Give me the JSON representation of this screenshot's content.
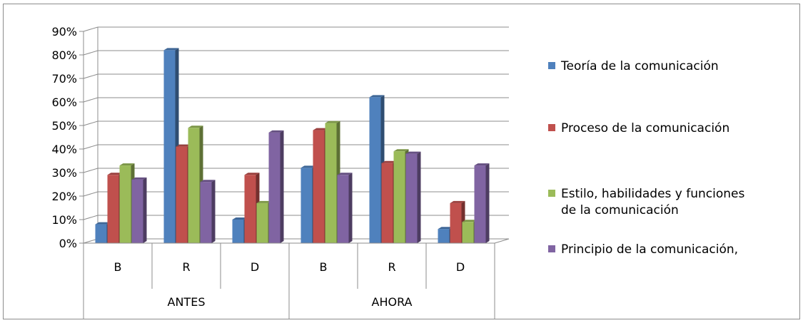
{
  "chart_data": {
    "type": "bar",
    "title": "",
    "xlabel": "",
    "ylabel": "",
    "ylim": [
      0,
      90
    ],
    "y_ticks": [
      "0%",
      "10%",
      "20%",
      "30%",
      "40%",
      "50%",
      "60%",
      "70%",
      "80%",
      "90%"
    ],
    "y_tick_values": [
      0,
      10,
      20,
      30,
      40,
      50,
      60,
      70,
      80,
      90
    ],
    "grid": true,
    "style": "3d-clustered-column",
    "legend_position": "right",
    "groups": [
      {
        "label": "ANTES",
        "categories": [
          "B",
          "R",
          "D"
        ]
      },
      {
        "label": "AHORA",
        "categories": [
          "B",
          "R",
          "D"
        ]
      }
    ],
    "categories": [
      "B",
      "R",
      "D",
      "B",
      "R",
      "D"
    ],
    "series": [
      {
        "name": "Teoría de la comunicación",
        "color": "#4F81BD",
        "values": [
          8,
          82,
          10,
          32,
          62,
          6
        ]
      },
      {
        "name": "Proceso de la comunicación",
        "color": "#C0504D",
        "values": [
          29,
          41,
          29,
          48,
          34,
          17
        ]
      },
      {
        "name": "Estilo, habilidades y funciones de la comunicación",
        "color": "#9BBB59",
        "values": [
          33,
          49,
          17,
          51,
          39,
          9
        ]
      },
      {
        "name": "Principio de la comunicación,",
        "color": "#8064A2",
        "values": [
          27,
          26,
          47,
          29,
          38,
          33
        ]
      }
    ],
    "legend": [
      [
        "Teoría de la comunicación"
      ],
      [
        "Proceso de la comunicación"
      ],
      [
        "Estilo, habilidades y funciones",
        "de la comunicación"
      ],
      [
        "Principio de la comunicación,"
      ]
    ]
  }
}
